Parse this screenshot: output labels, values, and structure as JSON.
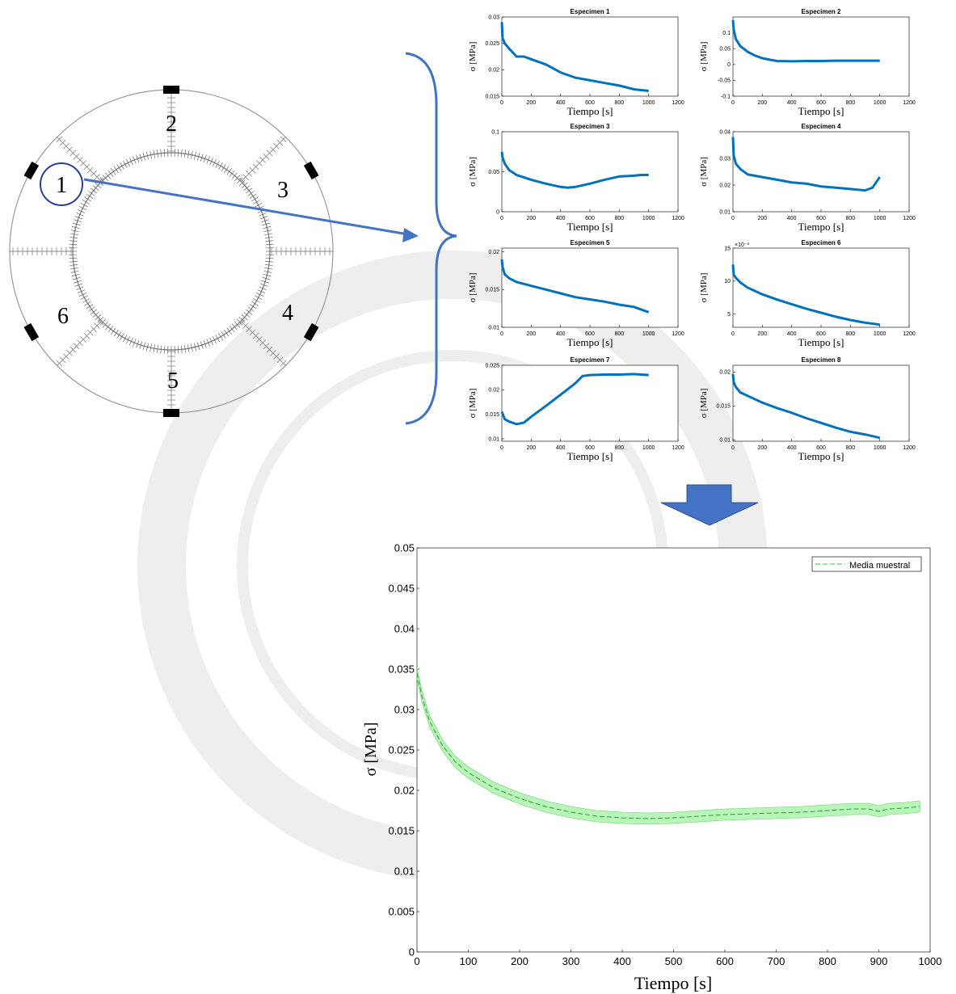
{
  "colors": {
    "specimen_line": "#0072bd",
    "mean_line": "#77dd77",
    "mean_band": "#b8f5b8",
    "arrow": "#4472c4",
    "ring": "#9a9a9a",
    "gauge": "#111111",
    "watermark": "#eeeeee"
  },
  "diagram": {
    "ring_labels": [
      "1",
      "2",
      "3",
      "4",
      "5",
      "6"
    ]
  },
  "subplot_axis": {
    "xlabel": "Tiempo [s]",
    "ylabel": "σ [MPa]",
    "xticks": [
      "0",
      "200",
      "400",
      "600",
      "800",
      "1000",
      "1200"
    ]
  },
  "main_axis": {
    "xlabel": "Tiempo [s]",
    "ylabel": "σ [MPa]",
    "legend": "Media muestral"
  },
  "chart_data": [
    {
      "type": "line",
      "title": "Especimen 1",
      "xlim": [
        0,
        1200
      ],
      "ylim": [
        0.015,
        0.03
      ],
      "yticks": [
        "0.015",
        "0.02",
        "0.025",
        "0.03"
      ],
      "x": [
        0,
        5,
        20,
        50,
        100,
        150,
        200,
        300,
        400,
        500,
        600,
        700,
        800,
        900,
        1000
      ],
      "y": [
        0.029,
        0.026,
        0.025,
        0.024,
        0.0225,
        0.0225,
        0.022,
        0.021,
        0.0195,
        0.0185,
        0.018,
        0.0175,
        0.017,
        0.0163,
        0.016
      ]
    },
    {
      "type": "line",
      "title": "Especimen 2",
      "xlim": [
        0,
        1200
      ],
      "ylim": [
        -0.1,
        0.15
      ],
      "yticks": [
        "-0.1",
        "-0.05",
        "0",
        "0.05",
        "0.1"
      ],
      "x": [
        0,
        5,
        20,
        50,
        100,
        150,
        200,
        250,
        300,
        400,
        500,
        600,
        700,
        800,
        900,
        1000
      ],
      "y": [
        0.14,
        0.11,
        0.08,
        0.058,
        0.04,
        0.028,
        0.02,
        0.015,
        0.011,
        0.01,
        0.011,
        0.011,
        0.012,
        0.012,
        0.012,
        0.012
      ]
    },
    {
      "type": "line",
      "title": "Especimen 3",
      "xlim": [
        0,
        1200
      ],
      "ylim": [
        0,
        0.1
      ],
      "yticks": [
        "0",
        "0.05",
        "0.1"
      ],
      "x": [
        0,
        5,
        20,
        50,
        100,
        200,
        300,
        400,
        450,
        500,
        600,
        700,
        800,
        900,
        950,
        1000
      ],
      "y": [
        0.075,
        0.068,
        0.06,
        0.052,
        0.046,
        0.04,
        0.035,
        0.031,
        0.03,
        0.031,
        0.035,
        0.04,
        0.044,
        0.045,
        0.046,
        0.046
      ]
    },
    {
      "type": "line",
      "title": "Especimen 4",
      "xlim": [
        0,
        1200
      ],
      "ylim": [
        0.01,
        0.04
      ],
      "yticks": [
        "0.01",
        "0.02",
        "0.03",
        "0.04"
      ],
      "x": [
        0,
        5,
        20,
        50,
        100,
        200,
        300,
        400,
        500,
        600,
        700,
        800,
        900,
        950,
        1000
      ],
      "y": [
        0.038,
        0.031,
        0.028,
        0.026,
        0.024,
        0.023,
        0.022,
        0.021,
        0.0205,
        0.0195,
        0.019,
        0.0185,
        0.018,
        0.019,
        0.023
      ]
    },
    {
      "type": "line",
      "title": "Especimen 5",
      "xlim": [
        0,
        1200
      ],
      "ylim": [
        0.01,
        0.0205
      ],
      "yticks": [
        "0.01",
        "0.015",
        "0.02"
      ],
      "x": [
        0,
        5,
        20,
        50,
        100,
        200,
        300,
        400,
        500,
        600,
        700,
        800,
        900,
        1000
      ],
      "y": [
        0.019,
        0.018,
        0.017,
        0.0165,
        0.016,
        0.0155,
        0.015,
        0.0145,
        0.014,
        0.0137,
        0.0134,
        0.013,
        0.0127,
        0.012
      ]
    },
    {
      "type": "line",
      "title": "Especimen 6",
      "xlim": [
        0,
        1200
      ],
      "ylim": [
        0.003,
        0.015
      ],
      "yticks": [
        "5",
        "10",
        "15"
      ],
      "exponent_label": "×10⁻³",
      "x": [
        0,
        5,
        20,
        50,
        100,
        200,
        300,
        400,
        500,
        600,
        700,
        800,
        900,
        1000
      ],
      "y": [
        0.0125,
        0.011,
        0.0105,
        0.0098,
        0.009,
        0.008,
        0.0072,
        0.0065,
        0.0058,
        0.0052,
        0.0046,
        0.0041,
        0.0037,
        0.0034
      ]
    },
    {
      "type": "line",
      "title": "Especimen 7",
      "xlim": [
        0,
        1200
      ],
      "ylim": [
        0.0095,
        0.025
      ],
      "yticks": [
        "0.01",
        "0.015",
        "0.02",
        "0.025"
      ],
      "x": [
        0,
        20,
        50,
        100,
        150,
        200,
        300,
        400,
        500,
        550,
        600,
        700,
        800,
        900,
        1000
      ],
      "y": [
        0.0155,
        0.014,
        0.0135,
        0.013,
        0.0133,
        0.0145,
        0.0167,
        0.019,
        0.0213,
        0.0228,
        0.023,
        0.0231,
        0.0231,
        0.0232,
        0.023
      ]
    },
    {
      "type": "line",
      "title": "Especimen 8",
      "xlim": [
        0,
        1200
      ],
      "ylim": [
        0.0098,
        0.021
      ],
      "yticks": [
        "0.01",
        "0.015",
        "0.02"
      ],
      "x": [
        0,
        5,
        20,
        50,
        100,
        200,
        300,
        400,
        500,
        600,
        700,
        800,
        900,
        1000
      ],
      "y": [
        0.0197,
        0.0185,
        0.0178,
        0.017,
        0.0165,
        0.0155,
        0.0147,
        0.014,
        0.0132,
        0.0125,
        0.0118,
        0.0112,
        0.0108,
        0.0103
      ]
    },
    {
      "type": "area",
      "title": "",
      "xlim": [
        0,
        1000
      ],
      "ylim": [
        0,
        0.05
      ],
      "xticks": [
        "0",
        "100",
        "200",
        "300",
        "400",
        "500",
        "600",
        "700",
        "800",
        "900",
        "1000"
      ],
      "yticks": [
        "0",
        "0.005",
        "0.01",
        "0.015",
        "0.02",
        "0.025",
        "0.03",
        "0.035",
        "0.04",
        "0.045",
        "0.05"
      ],
      "legend": "top-right",
      "series": [
        {
          "name": "Media muestral",
          "x": [
            0,
            10,
            25,
            50,
            75,
            100,
            150,
            200,
            250,
            300,
            350,
            400,
            450,
            500,
            550,
            600,
            650,
            700,
            750,
            800,
            850,
            880,
            900,
            920,
            950,
            980
          ],
          "y": [
            0.0345,
            0.0315,
            0.0285,
            0.0255,
            0.0235,
            0.0222,
            0.0203,
            0.019,
            0.018,
            0.0173,
            0.0168,
            0.0166,
            0.0165,
            0.0166,
            0.0168,
            0.017,
            0.0171,
            0.0172,
            0.0173,
            0.0175,
            0.0177,
            0.0177,
            0.0174,
            0.0177,
            0.0178,
            0.018
          ],
          "band": 0.0007
        }
      ]
    }
  ]
}
